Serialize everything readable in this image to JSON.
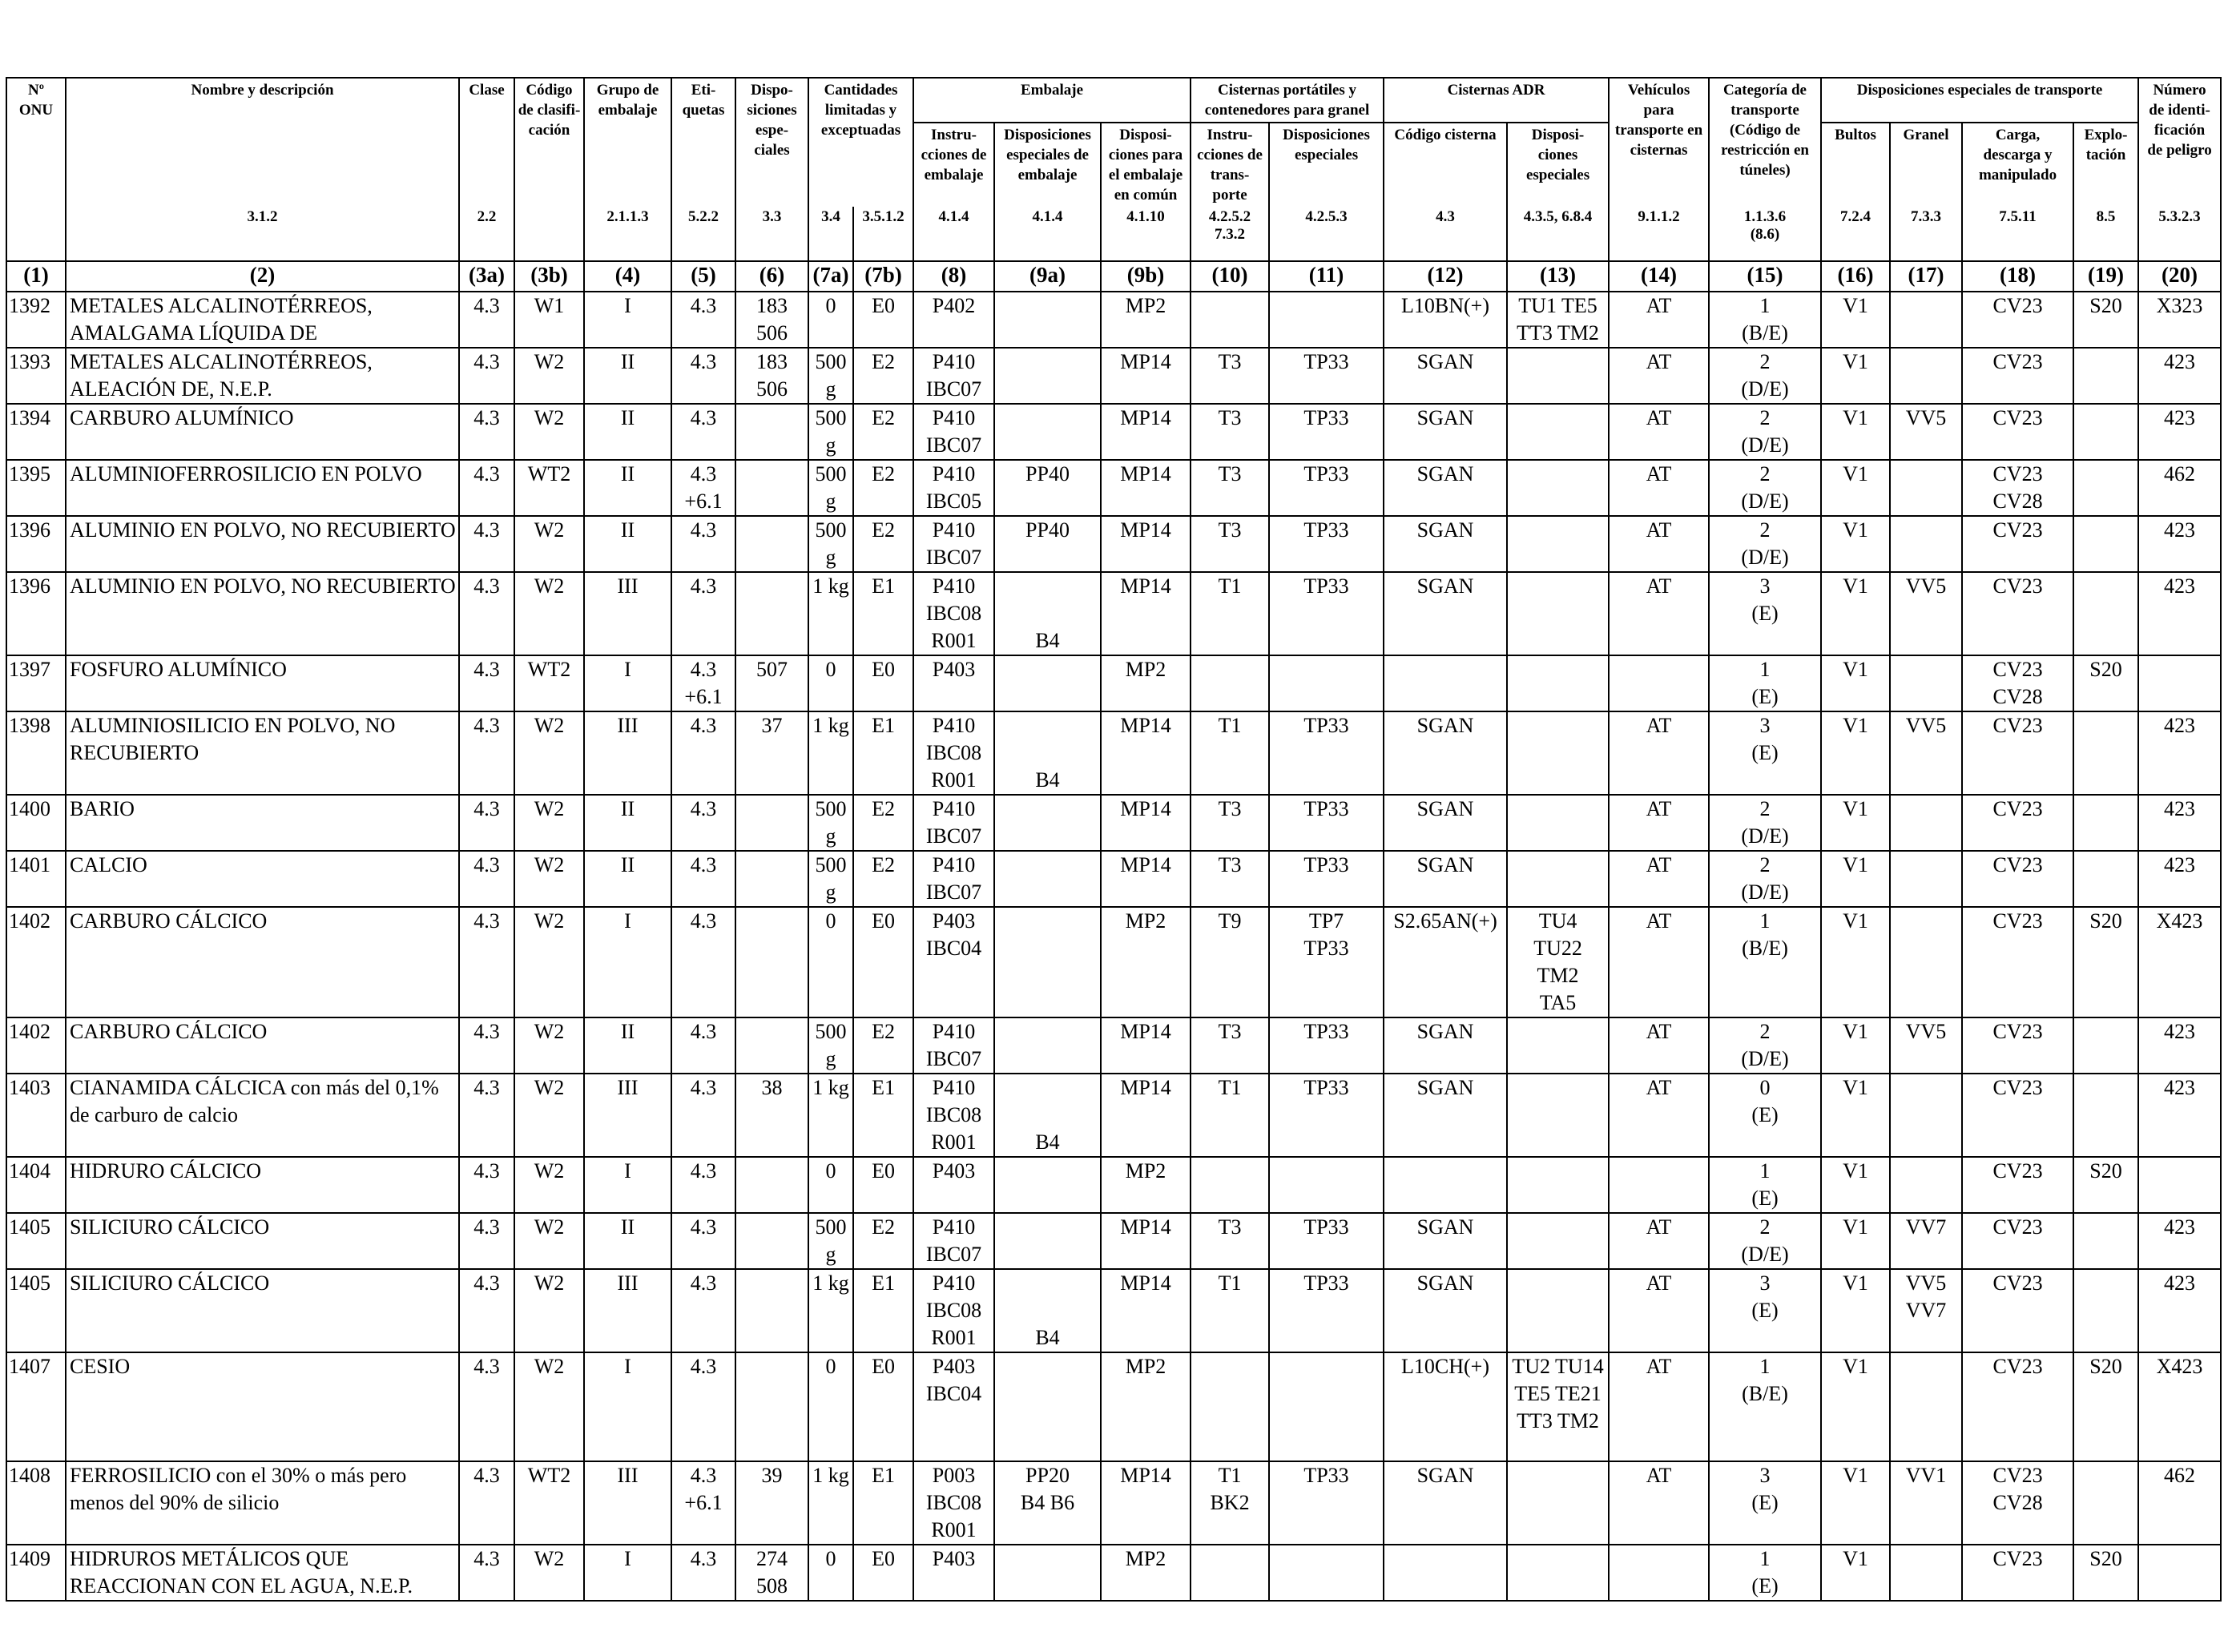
{
  "headers": {
    "onu": "Nº\nONU",
    "nombre": "Nombre y descripción",
    "clase": "Clase",
    "codigo": "Código\nde clasifi-\ncación",
    "grupo": "Grupo de\nembalaje",
    "etiquetas": "Eti-\nquetas",
    "dispo": "Dispo-\nsiciones\nespe-\nciales",
    "cantidades": "Cantidades\nlimitadas y\nexceptuadas",
    "embalaje": "Embalaje",
    "instrucciones": "Instru-\ncciones de\nembalaje",
    "disp_esp_emb": "Disposiciones\nespeciales de\nembalaje",
    "disp_comun": "Disposi-\nciones para\nel embalaje\nen común",
    "cisternas_port": "Cisternas portátiles y\ncontenedores para granel",
    "instr_transporte": "Instru-\ncciones de\ntrans-\nporte",
    "disp_esp_cist": "Disposiciones\nespeciales",
    "cisternas_adr": "Cisternas ADR",
    "codigo_cisterna": "Código cisterna",
    "disp_esp_adr": "Disposi-\nciones\nespeciales",
    "vehiculos": "Vehículos\npara\ntransporte en\ncisternas",
    "categoria": "Categoría de\ntransporte\n(Código de\nrestricción en\ntúneles)",
    "disp_transporte": "Disposiciones especiales de transporte",
    "bultos": "Bultos",
    "granel": "Granel",
    "carga": "Carga,\ndescarga y\nmanipulado",
    "explotacion": "Explo-\ntación",
    "numero_peligro": "Número\nde identi-\nficación\nde peligro"
  },
  "refs": [
    "",
    "3.1.2",
    "2.2",
    "",
    "2.1.1.3",
    "5.2.2",
    "3.3",
    "3.4",
    "3.5.1.2",
    "4.1.4",
    "4.1.4",
    "4.1.10",
    "4.2.5.2\n7.3.2",
    "4.2.5.3",
    "4.3",
    "4.3.5, 6.8.4",
    "9.1.1.2",
    "1.1.3.6\n(8.6)",
    "7.2.4",
    "7.3.3",
    "7.5.11",
    "8.5",
    "5.3.2.3"
  ],
  "col_nums": [
    "(1)",
    "(2)",
    "(3a)",
    "(3b)",
    "(4)",
    "(5)",
    "(6)",
    "(7a)",
    "(7b)",
    "(8)",
    "(9a)",
    "(9b)",
    "(10)",
    "(11)",
    "(12)",
    "(13)",
    "(14)",
    "(15)",
    "(16)",
    "(17)",
    "(18)",
    "(19)",
    "(20)"
  ],
  "rows": [
    {
      "h": "r2",
      "c": [
        "1392",
        "METALES ALCALINOTÉRREOS, AMALGAMA LÍQUIDA DE",
        "4.3",
        "W1",
        "I",
        "4.3",
        "183\n506",
        "0",
        "E0",
        "P402",
        "",
        "MP2",
        "",
        "",
        "L10BN(+)",
        "TU1 TE5\nTT3 TM2",
        "AT",
        "1\n(B/E)",
        "V1",
        "",
        "CV23",
        "S20",
        "X323"
      ]
    },
    {
      "h": "r2",
      "c": [
        "1393",
        "METALES ALCALINOTÉRREOS, ALEACIÓN DE, N.E.P.",
        "4.3",
        "W2",
        "II",
        "4.3",
        "183\n506",
        "500\ng",
        "E2",
        "P410\nIBC07",
        "",
        "MP14",
        "T3",
        "TP33",
        "SGAN",
        "",
        "AT",
        "2\n(D/E)",
        "V1",
        "",
        "CV23",
        "",
        "423"
      ]
    },
    {
      "h": "r2b",
      "c": [
        "1394",
        "CARBURO ALUMÍNICO",
        "4.3",
        "W2",
        "II",
        "4.3",
        "",
        "500\ng",
        "E2",
        "P410\nIBC07",
        "",
        "MP14",
        "T3",
        "TP33",
        "SGAN",
        "",
        "AT",
        "2\n(D/E)",
        "V1",
        "VV5",
        "CV23",
        "",
        "423"
      ]
    },
    {
      "h": "r2b",
      "c": [
        "1395",
        "ALUMINIOFERROSILICIO EN POLVO",
        "4.3",
        "WT2",
        "II",
        "4.3\n+6.1",
        "",
        "500\ng",
        "E2",
        "P410\nIBC05",
        "PP40",
        "MP14",
        "T3",
        "TP33",
        "SGAN",
        "",
        "AT",
        "2\n(D/E)",
        "V1",
        "",
        "CV23\nCV28",
        "",
        "462"
      ]
    },
    {
      "h": "r2b",
      "c": [
        "1396",
        "ALUMINIO EN POLVO, NO RECUBIERTO",
        "4.3",
        "W2",
        "II",
        "4.3",
        "",
        "500\ng",
        "E2",
        "P410\nIBC07",
        "PP40",
        "MP14",
        "T3",
        "TP33",
        "SGAN",
        "",
        "AT",
        "2\n(D/E)",
        "V1",
        "",
        "CV23",
        "",
        "423"
      ]
    },
    {
      "h": "r3",
      "c": [
        "1396",
        "ALUMINIO EN POLVO, NO RECUBIERTO",
        "4.3",
        "W2",
        "III",
        "4.3",
        "",
        "1 kg",
        "E1",
        "P410\nIBC08\nR001",
        "\n\nB4",
        "MP14",
        "T1",
        "TP33",
        "SGAN",
        "",
        "AT",
        "3\n(E)",
        "V1",
        "VV5",
        "CV23",
        "",
        "423"
      ]
    },
    {
      "h": "r2b",
      "c": [
        "1397",
        "FOSFURO ALUMÍNICO",
        "4.3",
        "WT2",
        "I",
        "4.3\n+6.1",
        "507",
        "0",
        "E0",
        "P403",
        "",
        "MP2",
        "",
        "",
        "",
        "",
        "",
        "1\n(E)",
        "V1",
        "",
        "CV23\nCV28",
        "S20",
        ""
      ]
    },
    {
      "h": "r3",
      "c": [
        "1398",
        "ALUMINIOSILICIO EN POLVO, NO RECUBIERTO",
        "4.3",
        "W2",
        "III",
        "4.3",
        "37",
        "1 kg",
        "E1",
        "P410\nIBC08\nR001",
        "\n\nB4",
        "MP14",
        "T1",
        "TP33",
        "SGAN",
        "",
        "AT",
        "3\n(E)",
        "V1",
        "VV5",
        "CV23",
        "",
        "423"
      ]
    },
    {
      "h": "r2b",
      "c": [
        "1400",
        "BARIO",
        "4.3",
        "W2",
        "II",
        "4.3",
        "",
        "500\ng",
        "E2",
        "P410\nIBC07",
        "",
        "MP14",
        "T3",
        "TP33",
        "SGAN",
        "",
        "AT",
        "2\n(D/E)",
        "V1",
        "",
        "CV23",
        "",
        "423"
      ]
    },
    {
      "h": "r2b",
      "c": [
        "1401",
        "CALCIO",
        "4.3",
        "W2",
        "II",
        "4.3",
        "",
        "500\ng",
        "E2",
        "P410\nIBC07",
        "",
        "MP14",
        "T3",
        "TP33",
        "SGAN",
        "",
        "AT",
        "2\n(D/E)",
        "V1",
        "",
        "CV23",
        "",
        "423"
      ]
    },
    {
      "h": "r4",
      "c": [
        "1402",
        "CARBURO CÁLCICO",
        "4.3",
        "W2",
        "I",
        "4.3",
        "",
        "0",
        "E0",
        "P403\nIBC04",
        "",
        "MP2",
        "T9",
        "TP7\nTP33",
        "S2.65AN(+)",
        "TU4\nTU22\nTM2\nTA5",
        "AT",
        "1\n(B/E)",
        "V1",
        "",
        "CV23",
        "S20",
        "X423"
      ]
    },
    {
      "h": "r2",
      "c": [
        "1402",
        "CARBURO CÁLCICO",
        "4.3",
        "W2",
        "II",
        "4.3",
        "",
        "500\ng",
        "E2",
        "P410\nIBC07",
        "",
        "MP14",
        "T3",
        "TP33",
        "SGAN",
        "",
        "AT",
        "2\n(D/E)",
        "V1",
        "VV5",
        "CV23",
        "",
        "423"
      ]
    },
    {
      "h": "r3",
      "c": [
        "1403",
        "CIANAMIDA CÁLCICA con más del 0,1% de carburo de calcio",
        "4.3",
        "W2",
        "III",
        "4.3",
        "38",
        "1 kg",
        "E1",
        "P410\nIBC08\nR001",
        "\n\nB4",
        "MP14",
        "T1",
        "TP33",
        "SGAN",
        "",
        "AT",
        "0\n(E)",
        "V1",
        "",
        "CV23",
        "",
        "423"
      ]
    },
    {
      "h": "r2b",
      "c": [
        "1404",
        "HIDRURO CÁLCICO",
        "4.3",
        "W2",
        "I",
        "4.3",
        "",
        "0",
        "E0",
        "P403",
        "",
        "MP2",
        "",
        "",
        "",
        "",
        "",
        "1\n(E)",
        "V1",
        "",
        "CV23",
        "S20",
        ""
      ]
    },
    {
      "h": "r2b",
      "c": [
        "1405",
        "SILICIURO CÁLCICO",
        "4.3",
        "W2",
        "II",
        "4.3",
        "",
        "500\ng",
        "E2",
        "P410\nIBC07",
        "",
        "MP14",
        "T3",
        "TP33",
        "SGAN",
        "",
        "AT",
        "2\n(D/E)",
        "V1",
        "VV7",
        "CV23",
        "",
        "423"
      ]
    },
    {
      "h": "r3",
      "c": [
        "1405",
        "SILICIURO CÁLCICO",
        "4.3",
        "W2",
        "III",
        "4.3",
        "",
        "1 kg",
        "E1",
        "P410\nIBC08\nR001",
        "\n\nB4",
        "MP14",
        "T1",
        "TP33",
        "SGAN",
        "",
        "AT",
        "3\n(E)",
        "V1",
        "VV5\nVV7",
        "CV23",
        "",
        "423"
      ]
    },
    {
      "h": "r4",
      "c": [
        "1407",
        "CESIO",
        "4.3",
        "W2",
        "I",
        "4.3",
        "",
        "0",
        "E0",
        "P403\nIBC04",
        "",
        "MP2",
        "",
        "",
        "L10CH(+)",
        "TU2 TU14\nTE5 TE21\nTT3 TM2",
        "AT",
        "1\n(B/E)",
        "V1",
        "",
        "CV23",
        "S20",
        "X423"
      ]
    },
    {
      "h": "r3",
      "c": [
        "1408",
        "FERROSILICIO con el 30% o más pero menos del 90% de silicio",
        "4.3",
        "WT2",
        "III",
        "4.3\n+6.1",
        "39",
        "1 kg",
        "E1",
        "P003\nIBC08\nR001",
        "PP20\nB4 B6",
        "MP14",
        "T1\nBK2",
        "TP33",
        "SGAN",
        "",
        "AT",
        "3\n(E)",
        "V1",
        "VV1",
        "CV23\nCV28",
        "",
        "462"
      ]
    },
    {
      "h": "r2",
      "c": [
        "1409",
        "HIDRUROS METÁLICOS QUE REACCIONAN CON EL AGUA, N.E.P.",
        "4.3",
        "W2",
        "I",
        "4.3",
        "274\n508",
        "0",
        "E0",
        "P403",
        "",
        "MP2",
        "",
        "",
        "",
        "",
        "",
        "1\n(E)",
        "V1",
        "",
        "CV23",
        "S20",
        ""
      ]
    }
  ]
}
